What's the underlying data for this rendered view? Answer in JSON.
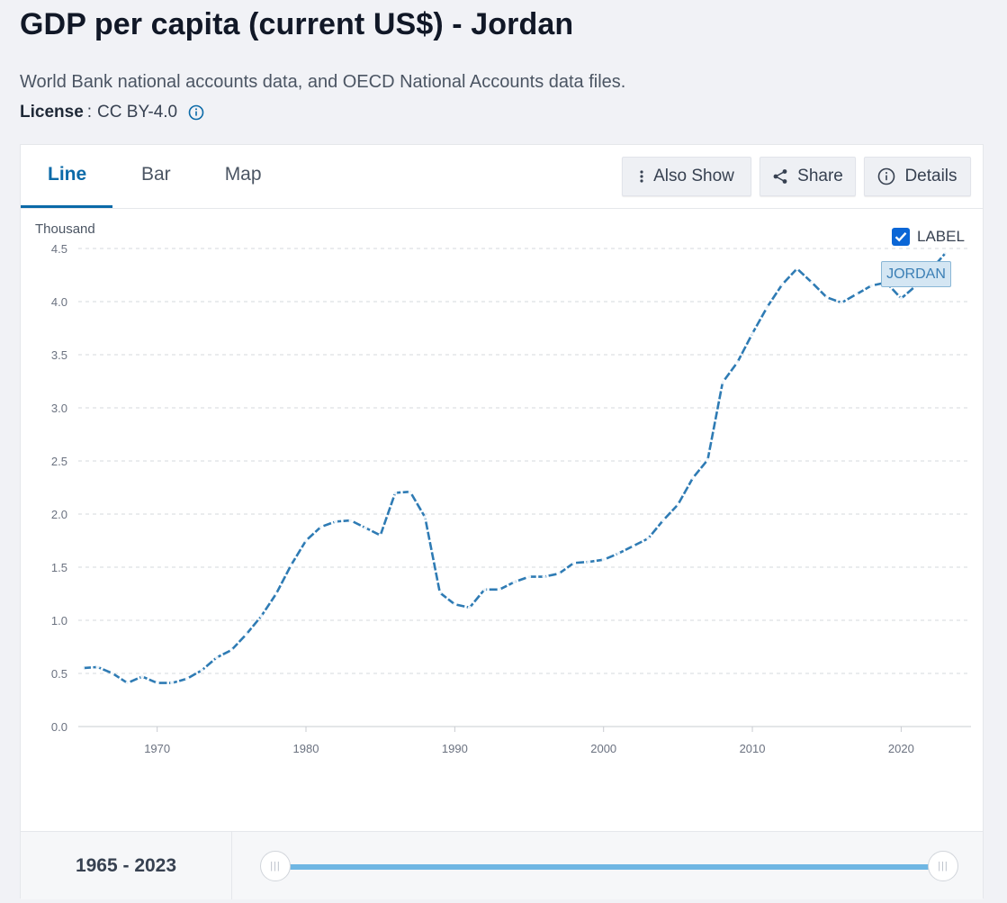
{
  "header": {
    "title": "GDP per capita (current US$) - Jordan",
    "source": "World Bank national accounts data, and OECD National Accounts data files.",
    "license_label": "License",
    "license_sep": ":",
    "license_value": "CC BY-4.0"
  },
  "tabs": [
    {
      "label": "Line",
      "active": true
    },
    {
      "label": "Bar",
      "active": false
    },
    {
      "label": "Map",
      "active": false
    }
  ],
  "toolbar": {
    "also_show": "Also Show",
    "share": "Share",
    "details": "Details"
  },
  "label_toggle": {
    "label": "LABEL",
    "checked": true
  },
  "series_tag": "JORDAN",
  "range": {
    "label": "1965 - 2023",
    "start": 1965,
    "end": 2023
  },
  "colors": {
    "line": "#2e7bb4",
    "accent": "#0b6aa8",
    "slider": "#6fb6e3"
  },
  "chart_data": {
    "type": "line",
    "unit_label": "Thousand",
    "xlim": [
      1965,
      2023
    ],
    "ylim": [
      0,
      4.5
    ],
    "y_ticks": [
      "0.0",
      "0.5",
      "1.0",
      "1.5",
      "2.0",
      "2.5",
      "3.0",
      "3.5",
      "4.0",
      "4.5"
    ],
    "x_ticks": [
      "1970",
      "1980",
      "1990",
      "2000",
      "2010",
      "2020"
    ],
    "grid": true,
    "line_style": "dotted",
    "series": [
      {
        "name": "JORDAN",
        "x": [
          1965,
          1966,
          1967,
          1968,
          1969,
          1970,
          1971,
          1972,
          1973,
          1974,
          1975,
          1976,
          1977,
          1978,
          1979,
          1980,
          1981,
          1982,
          1983,
          1984,
          1985,
          1986,
          1987,
          1988,
          1989,
          1990,
          1991,
          1992,
          1993,
          1994,
          1995,
          1996,
          1997,
          1998,
          1999,
          2000,
          2001,
          2002,
          2003,
          2004,
          2005,
          2006,
          2007,
          2008,
          2009,
          2010,
          2011,
          2012,
          2013,
          2014,
          2015,
          2016,
          2017,
          2018,
          2019,
          2020,
          2021,
          2022,
          2023
        ],
        "values": [
          0.55,
          0.56,
          0.5,
          0.41,
          0.47,
          0.41,
          0.41,
          0.45,
          0.53,
          0.65,
          0.72,
          0.87,
          1.04,
          1.25,
          1.52,
          1.75,
          1.88,
          1.93,
          1.94,
          1.87,
          1.8,
          2.2,
          2.21,
          1.97,
          1.26,
          1.15,
          1.12,
          1.29,
          1.29,
          1.36,
          1.41,
          1.41,
          1.44,
          1.54,
          1.55,
          1.57,
          1.63,
          1.7,
          1.77,
          1.94,
          2.09,
          2.34,
          2.51,
          3.24,
          3.43,
          3.7,
          3.95,
          4.16,
          4.31,
          4.18,
          4.04,
          3.99,
          4.07,
          4.15,
          4.18,
          4.03,
          4.15,
          4.3,
          4.46
        ]
      }
    ]
  }
}
